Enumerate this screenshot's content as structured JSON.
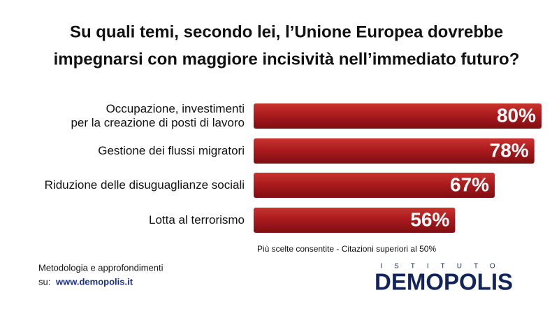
{
  "chart_data": {
    "type": "bar",
    "title": [
      "Su quali temi, secondo lei, l’Unione Europea dovrebbe",
      "impegnarsi con maggiore incisività nell’immediato futuro?"
    ],
    "categories": [
      "Occupazione, investimenti\nper la creazione di posti di lavoro",
      "Gestione dei flussi migratori",
      "Riduzione delle disuguaglianze sociali",
      "Lotta al terrorismo"
    ],
    "values": [
      80,
      78,
      67,
      56
    ],
    "value_labels": [
      "80%",
      "78%",
      "67%",
      "56%"
    ],
    "color": "#a8191d",
    "note": "Più scelte consentite - Citazioni superiori al 50%"
  },
  "footer": {
    "line1": "Metodologia e approfondimenti",
    "prefix": "su:",
    "link": "www.demopolis.it"
  },
  "logo": {
    "top": "ISTITUTO",
    "name": "DEMOPOLIS"
  }
}
